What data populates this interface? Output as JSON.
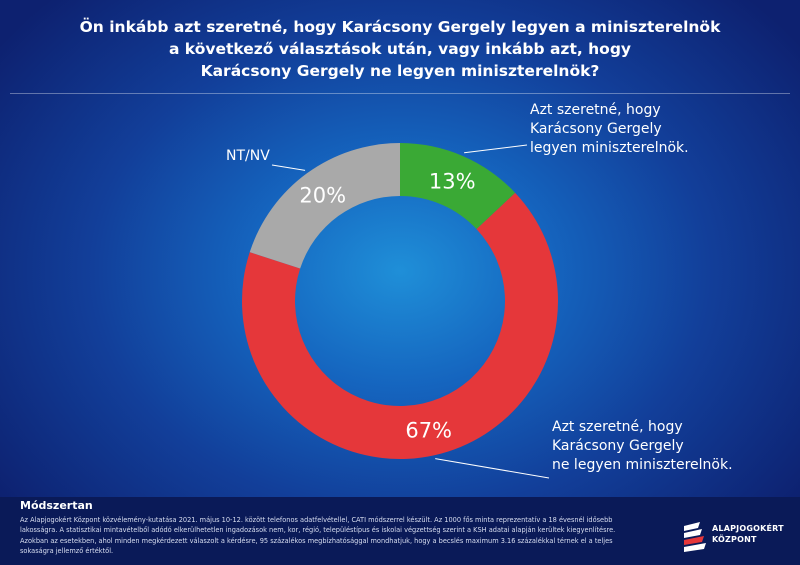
{
  "title_lines": [
    "Ön inkább azt szeretné, hogy Karácsony Gergely legyen a miniszterelnök",
    "a következő választások után, vagy inkább azt,  hogy",
    "Karácsony Gergely ne legyen miniszterelnök?"
  ],
  "chart_data": {
    "type": "pie",
    "categories": [
      "Azt szeretné, hogy Karácsony Gergely legyen miniszterelnök.",
      "Azt szeretné, hogy Karácsony Gergely ne legyen miniszterelnök.",
      "NT/NV"
    ],
    "values": [
      13,
      67,
      20
    ],
    "value_labels": [
      "13%",
      "67%",
      "20%"
    ],
    "colors": [
      "#3aa935",
      "#e5373a",
      "#a9a9a9"
    ],
    "label_lines": [
      [
        "Azt szeretné, hogy",
        "Karácsony Gergely",
        "legyen miniszterelnök."
      ],
      [
        "Azt szeretné, hogy",
        "Karácsony Gergely",
        "ne legyen miniszterelnök."
      ],
      [
        "NT/NV"
      ]
    ],
    "donut": true,
    "legend": "none"
  },
  "method": {
    "title": "Módszertan",
    "text": "Az Alapjogokért Központ közvélemény-kutatása 2021. május 10-12. között telefonos adatfelvétellel, CATI módszerrel készült. Az 1000 fős minta reprezentatív a 18 évesnél idősebb lakosságra. A statisztikai mintavételből adódó elkerülhetetlen ingadozások nem, kor, régió, településtípus és iskolai végzettség szerint a KSH adatai alapján kerültek kiegyenlítésre. Azokban az esetekben, ahol minden megkérdezett válaszolt a kérdésre, 95 százalékos megbízhatósággal mondhatjuk, hogy a becslés maximum 3.16 százalékkal térnek el a teljes sokaságra jellemző értéktől."
  },
  "logo": {
    "line1": "ALAPJOGOKÉRT",
    "line2": "KÖZPONT"
  }
}
